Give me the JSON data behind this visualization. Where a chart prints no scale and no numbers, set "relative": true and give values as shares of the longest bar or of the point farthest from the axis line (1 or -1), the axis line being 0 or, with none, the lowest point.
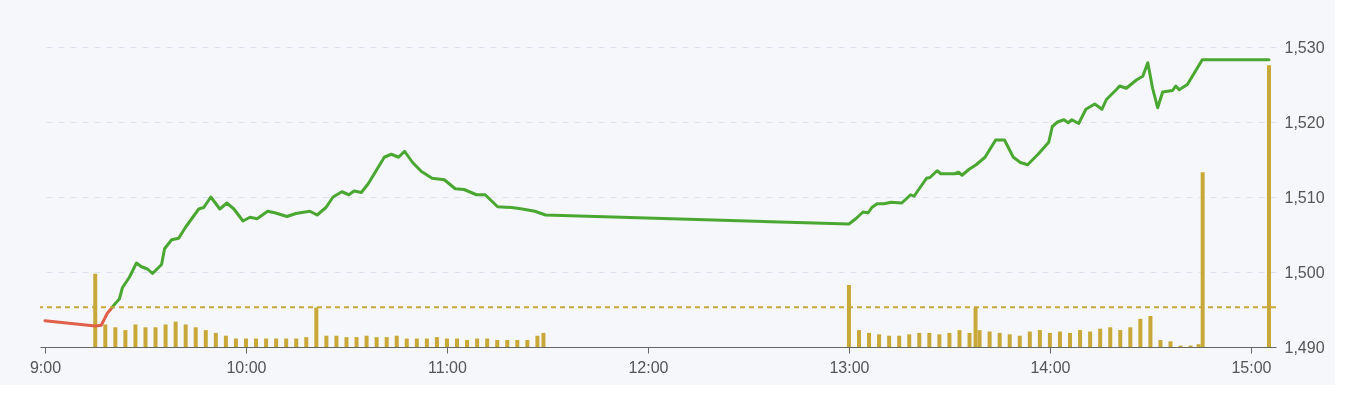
{
  "chart_data": [
    {
      "type": "line",
      "xlim": [
        9,
        15.1
      ],
      "ylim": [
        1490,
        1530
      ],
      "xticks": [
        {
          "value": 9,
          "label": "9:00"
        },
        {
          "value": 10,
          "label": "10:00"
        },
        {
          "value": 11,
          "label": "11:00"
        },
        {
          "value": 12,
          "label": "12:00"
        },
        {
          "value": 13,
          "label": "13:00"
        },
        {
          "value": 14,
          "label": "14:00"
        },
        {
          "value": 15,
          "label": "15:00"
        }
      ],
      "yticks": [
        {
          "value": 1490,
          "label": "1,490"
        },
        {
          "value": 1500,
          "label": "1,500"
        },
        {
          "value": 1510,
          "label": "1,510"
        },
        {
          "value": 1520,
          "label": "1,520"
        },
        {
          "value": 1530,
          "label": "1,530"
        }
      ],
      "grid": "y",
      "marker": "none",
      "line_style": "solid",
      "legend": false,
      "ref_lines": [
        {
          "axis": "y",
          "value": 1495.3,
          "color": "#c9a83a",
          "line_style": "dashed"
        }
      ],
      "series": [
        {
          "color": "#e0604a",
          "x": [
            9.0,
            9.25,
            9.28,
            9.31,
            9.335
          ],
          "values": [
            1493.5,
            1492.8,
            1492.9,
            1494.5,
            1495.3
          ]
        },
        {
          "color": "#4aa832",
          "x": [
            9.335,
            9.34,
            9.37,
            9.385,
            9.42,
            9.455,
            9.48,
            9.51,
            9.535,
            9.58,
            9.595,
            9.63,
            9.665,
            9.7,
            9.765,
            9.79,
            9.825,
            9.87,
            9.905,
            9.94,
            9.985,
            10.02,
            10.055,
            10.108,
            10.143,
            10.204,
            10.248,
            10.318,
            10.354,
            10.398,
            10.433,
            10.477,
            10.512,
            10.538,
            10.574,
            10.609,
            10.688,
            10.723,
            10.759,
            10.789,
            10.829,
            10.873,
            10.926,
            10.987,
            11.041,
            11.085,
            11.147,
            11.19,
            11.252,
            11.323,
            11.375,
            11.437,
            11.49,
            13.0,
            13.034,
            13.07,
            13.096,
            13.114,
            13.14,
            13.175,
            13.21,
            13.263,
            13.307,
            13.324,
            13.386,
            13.403,
            13.439,
            13.457,
            13.527,
            13.545,
            13.563,
            13.598,
            13.633,
            13.677,
            13.73,
            13.774,
            13.818,
            13.853,
            13.889,
            13.941,
            13.994,
            14.012,
            14.038,
            14.07,
            14.091,
            14.109,
            14.143,
            14.179,
            14.223,
            14.259,
            14.281,
            14.33,
            14.347,
            14.38,
            14.43,
            14.462,
            14.487,
            14.511,
            14.536,
            14.561,
            14.61,
            14.626,
            14.643,
            14.684,
            14.758,
            15.09
          ],
          "values": [
            1495.3,
            1495.5,
            1496.4,
            1497.9,
            1499.3,
            1501.2,
            1500.7,
            1500.4,
            1499.8,
            1501.0,
            1503.1,
            1504.3,
            1504.5,
            1506.0,
            1508.4,
            1508.6,
            1510.0,
            1508.4,
            1509.2,
            1508.4,
            1506.8,
            1507.3,
            1507.1,
            1508.1,
            1507.9,
            1507.4,
            1507.8,
            1508.1,
            1507.6,
            1508.6,
            1510.0,
            1510.7,
            1510.3,
            1510.8,
            1510.6,
            1511.8,
            1515.3,
            1515.7,
            1515.3,
            1516.1,
            1514.6,
            1513.4,
            1512.5,
            1512.3,
            1511.1,
            1511.0,
            1510.3,
            1510.3,
            1508.7,
            1508.6,
            1508.4,
            1508.1,
            1507.6,
            1506.4,
            1507.1,
            1508.0,
            1507.9,
            1508.6,
            1509.1,
            1509.1,
            1509.3,
            1509.2,
            1510.3,
            1510.1,
            1512.5,
            1512.6,
            1513.5,
            1513.1,
            1513.1,
            1513.3,
            1512.9,
            1513.7,
            1514.3,
            1515.3,
            1517.6,
            1517.6,
            1515.3,
            1514.6,
            1514.3,
            1515.7,
            1517.3,
            1519.4,
            1520.0,
            1520.3,
            1519.9,
            1520.3,
            1519.8,
            1521.7,
            1522.4,
            1521.7,
            1523.0,
            1524.3,
            1524.8,
            1524.5,
            1525.6,
            1526.1,
            1527.9,
            1524.5,
            1521.9,
            1524.0,
            1524.2,
            1524.8,
            1524.3,
            1525.0,
            1528.3,
            1528.3
          ]
        }
      ]
    },
    {
      "type": "bar",
      "relative": true,
      "xlim": [
        9,
        15.1
      ],
      "color": "#c9a83a",
      "x": [
        9.25,
        9.3,
        9.35,
        9.4,
        9.45,
        9.5,
        9.55,
        9.6,
        9.65,
        9.7,
        9.75,
        9.8,
        9.85,
        9.9,
        9.95,
        10.0,
        10.05,
        10.1,
        10.15,
        10.2,
        10.25,
        10.3,
        10.35,
        10.4,
        10.45,
        10.5,
        10.55,
        10.6,
        10.65,
        10.7,
        10.75,
        10.8,
        10.85,
        10.9,
        10.95,
        11.0,
        11.05,
        11.1,
        11.15,
        11.2,
        11.25,
        11.3,
        11.35,
        11.4,
        11.45,
        11.48,
        13.0,
        13.05,
        13.1,
        13.15,
        13.2,
        13.25,
        13.3,
        13.35,
        13.4,
        13.45,
        13.5,
        13.55,
        13.6,
        13.63,
        13.65,
        13.7,
        13.75,
        13.8,
        13.85,
        13.9,
        13.95,
        14.0,
        14.05,
        14.1,
        14.15,
        14.2,
        14.25,
        14.3,
        14.35,
        14.4,
        14.45,
        14.5,
        14.55,
        14.6,
        14.65,
        14.7,
        14.74,
        14.76,
        15.09
      ],
      "values": [
        0.26,
        0.08,
        0.07,
        0.06,
        0.08,
        0.07,
        0.07,
        0.08,
        0.09,
        0.08,
        0.07,
        0.06,
        0.05,
        0.04,
        0.03,
        0.03,
        0.03,
        0.03,
        0.03,
        0.03,
        0.03,
        0.035,
        0.14,
        0.04,
        0.04,
        0.035,
        0.035,
        0.04,
        0.035,
        0.035,
        0.04,
        0.03,
        0.03,
        0.03,
        0.035,
        0.03,
        0.03,
        0.025,
        0.03,
        0.03,
        0.025,
        0.025,
        0.025,
        0.025,
        0.04,
        0.05,
        0.22,
        0.06,
        0.05,
        0.045,
        0.04,
        0.04,
        0.045,
        0.05,
        0.05,
        0.045,
        0.05,
        0.06,
        0.05,
        0.14,
        0.06,
        0.055,
        0.05,
        0.045,
        0.04,
        0.055,
        0.06,
        0.05,
        0.055,
        0.05,
        0.06,
        0.055,
        0.065,
        0.07,
        0.06,
        0.07,
        0.1,
        0.11,
        0.025,
        0.02,
        0.005,
        0.005,
        0.01,
        0.62,
        1.0
      ]
    }
  ]
}
